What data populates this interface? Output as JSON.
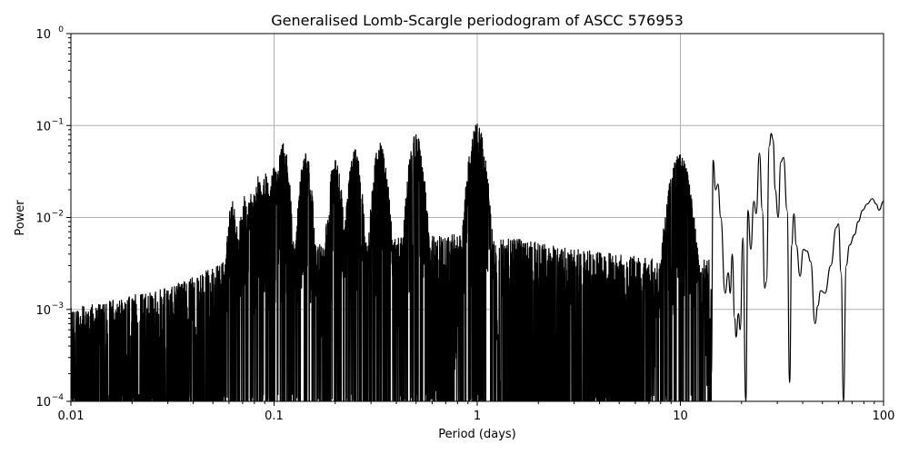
{
  "chart_data": {
    "type": "line",
    "title": "Generalised Lomb-Scargle periodogram of ASCC 576953",
    "xlabel": "Period (days)",
    "ylabel": "Power",
    "xscale": "log",
    "yscale": "log",
    "xlim": [
      0.01,
      100
    ],
    "ylim": [
      0.0001,
      1
    ],
    "grid": true,
    "legend": null,
    "line_color": "#000000",
    "grid_color": "#b0b0b0",
    "x_ticks": [
      {
        "value": 0.01,
        "label": "0.01"
      },
      {
        "value": 0.1,
        "label": "0.1"
      },
      {
        "value": 1,
        "label": "1"
      },
      {
        "value": 10,
        "label": "10"
      },
      {
        "value": 100,
        "label": "100"
      }
    ],
    "y_ticks": [
      {
        "value": 0.0001,
        "base": "10",
        "exp": "−4"
      },
      {
        "value": 0.001,
        "base": "10",
        "exp": "−3"
      },
      {
        "value": 0.01,
        "base": "10",
        "exp": "−2"
      },
      {
        "value": 0.1,
        "base": "10",
        "exp": "−1"
      },
      {
        "value": 1,
        "base": "10",
        "exp": "0"
      }
    ],
    "notable_peaks": [
      {
        "period": 1.0,
        "power": 0.105
      },
      {
        "period": 0.5,
        "power": 0.08
      },
      {
        "period": 0.333,
        "power": 0.065
      },
      {
        "period": 0.25,
        "power": 0.055
      },
      {
        "period": 0.2,
        "power": 0.042
      },
      {
        "period": 0.143,
        "power": 0.05
      },
      {
        "period": 0.111,
        "power": 0.064
      },
      {
        "period": 0.1,
        "power": 0.035
      },
      {
        "period": 0.0909,
        "power": 0.03
      },
      {
        "period": 0.0833,
        "power": 0.028
      },
      {
        "period": 0.0769,
        "power": 0.018
      },
      {
        "period": 0.0714,
        "power": 0.017
      },
      {
        "period": 0.0625,
        "power": 0.015
      },
      {
        "period": 9.9,
        "power": 0.048
      },
      {
        "period": 14.5,
        "power": 0.042
      },
      {
        "period": 28.0,
        "power": 0.082
      },
      {
        "period": 24.5,
        "power": 0.05
      },
      {
        "period": 32.0,
        "power": 0.045
      },
      {
        "period": 38.0,
        "power": 0.011
      },
      {
        "period": 60.0,
        "power": 0.0085
      },
      {
        "period": 88.0,
        "power": 0.016
      }
    ],
    "noise_envelope": [
      {
        "period": 0.01,
        "power": 0.0009
      },
      {
        "period": 0.03,
        "power": 0.0015
      },
      {
        "period": 0.06,
        "power": 0.003
      },
      {
        "period": 0.1,
        "power": 0.004
      },
      {
        "period": 0.3,
        "power": 0.005
      },
      {
        "period": 1.0,
        "power": 0.006
      },
      {
        "period": 3.0,
        "power": 0.004
      },
      {
        "period": 8.0,
        "power": 0.003
      }
    ],
    "tail_trace": [
      [
        14.2,
        0.0002
      ],
      [
        14.5,
        0.042
      ],
      [
        14.9,
        0.02
      ],
      [
        15.3,
        0.023
      ],
      [
        15.8,
        0.01
      ],
      [
        16.6,
        0.0015
      ],
      [
        17.2,
        0.0025
      ],
      [
        17.6,
        0.0015
      ],
      [
        18.0,
        0.004
      ],
      [
        18.5,
        0.0008
      ],
      [
        18.8,
        0.0005
      ],
      [
        19.3,
        0.0009
      ],
      [
        19.7,
        0.0006
      ],
      [
        20.3,
        0.006
      ],
      [
        21.0,
        0.0001
      ],
      [
        21.5,
        0.012
      ],
      [
        22.2,
        0.0045
      ],
      [
        23.0,
        0.015
      ],
      [
        23.6,
        0.011
      ],
      [
        24.5,
        0.05
      ],
      [
        25.3,
        0.012
      ],
      [
        26.0,
        0.0017
      ],
      [
        26.5,
        0.002
      ],
      [
        27.4,
        0.06
      ],
      [
        28.0,
        0.082
      ],
      [
        28.6,
        0.07
      ],
      [
        29.3,
        0.02
      ],
      [
        30.3,
        0.01
      ],
      [
        31.2,
        0.04
      ],
      [
        32.2,
        0.045
      ],
      [
        33.5,
        0.012
      ],
      [
        34.5,
        0.00016
      ],
      [
        35.3,
        0.005
      ],
      [
        36.2,
        0.011
      ],
      [
        37.2,
        0.005
      ],
      [
        38.8,
        0.0023
      ],
      [
        40.3,
        0.0045
      ],
      [
        42.0,
        0.0043
      ],
      [
        43.8,
        0.0033
      ],
      [
        46.0,
        0.0007
      ],
      [
        47.5,
        0.0011
      ],
      [
        49.0,
        0.0016
      ],
      [
        51.5,
        0.0015
      ],
      [
        55.0,
        0.003
      ],
      [
        58.5,
        0.0078
      ],
      [
        60.0,
        0.0085
      ],
      [
        61.8,
        0.0025
      ],
      [
        63.5,
        0.0001
      ],
      [
        65.5,
        0.003
      ],
      [
        68.0,
        0.005
      ],
      [
        72.0,
        0.0065
      ],
      [
        75.0,
        0.009
      ],
      [
        79.0,
        0.012
      ],
      [
        83.0,
        0.014
      ],
      [
        88.0,
        0.016
      ],
      [
        92.0,
        0.014
      ],
      [
        95.0,
        0.012
      ],
      [
        100.0,
        0.015
      ]
    ]
  }
}
